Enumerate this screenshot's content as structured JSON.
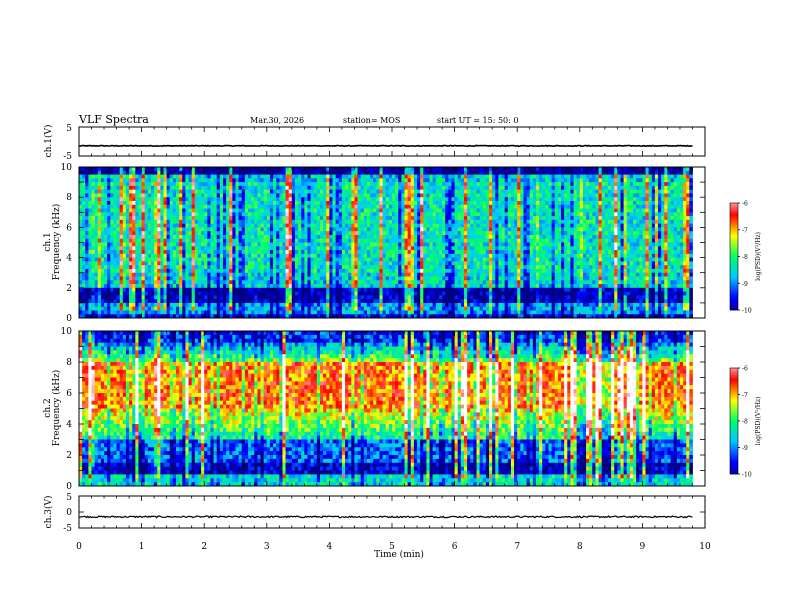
{
  "header": {
    "title": "VLF Spectra",
    "date": "Mar.30, 2026",
    "station": "station= MOS",
    "start": "start  UT =   15: 50: 0"
  },
  "chart_data": [
    {
      "type": "line",
      "panel": "ch1-waveform",
      "ylabel": "ch.1(V)",
      "ylim": [
        -5,
        5
      ],
      "yticks": [
        "5",
        "-5"
      ],
      "xlim": [
        0,
        10
      ],
      "level": -1.5,
      "data_end_min": 9.8
    },
    {
      "type": "heatmap",
      "panel": "ch1-spectrogram",
      "ylabel": "ch.1 Frequency (kHz)",
      "ylabel_lines": [
        "ch.1",
        "Frequency (kHz)"
      ],
      "ylim": [
        0,
        10
      ],
      "yticks": [
        "0",
        "2",
        "4",
        "6",
        "8",
        "10"
      ],
      "xlim": [
        0,
        10
      ],
      "data_end_min": 9.8,
      "colorbar": {
        "label": "log(PSD)(V²/Hz)",
        "range": [
          -10,
          -6
        ],
        "ticks": [
          "-6",
          "-7",
          "-8",
          "-9",
          "-10"
        ]
      }
    },
    {
      "type": "heatmap",
      "panel": "ch2-spectrogram",
      "ylabel": "ch.2 Frequency (kHz)",
      "ylabel_lines": [
        "ch.2",
        "Frequency (kHz)"
      ],
      "ylim": [
        0,
        10
      ],
      "yticks": [
        "0",
        "2",
        "4",
        "6",
        "8",
        "10"
      ],
      "xlim": [
        0,
        10
      ],
      "data_end_min": 9.8,
      "colorbar": {
        "label": "log(PSD)(V²/Hz)",
        "range": [
          -10,
          -6
        ],
        "ticks": [
          "-6",
          "-7",
          "-8",
          "-9",
          "-10"
        ]
      }
    },
    {
      "type": "line",
      "panel": "ch3-waveform",
      "ylabel": "ch.3(V)",
      "ylim": [
        -5,
        5
      ],
      "yticks": [
        "5",
        "0",
        "-5"
      ],
      "xlim": [
        0,
        10
      ],
      "level": -1.5,
      "data_end_min": 9.8,
      "xlabel": "Time  (min)",
      "xticks": [
        "0",
        "1",
        "2",
        "3",
        "4",
        "5",
        "6",
        "7",
        "8",
        "9",
        "10"
      ]
    }
  ],
  "colors": {
    "colormap": [
      "#000080",
      "#0000ff",
      "#00c8ff",
      "#00ff66",
      "#ffff00",
      "#ff0000",
      "#ffffff"
    ]
  }
}
